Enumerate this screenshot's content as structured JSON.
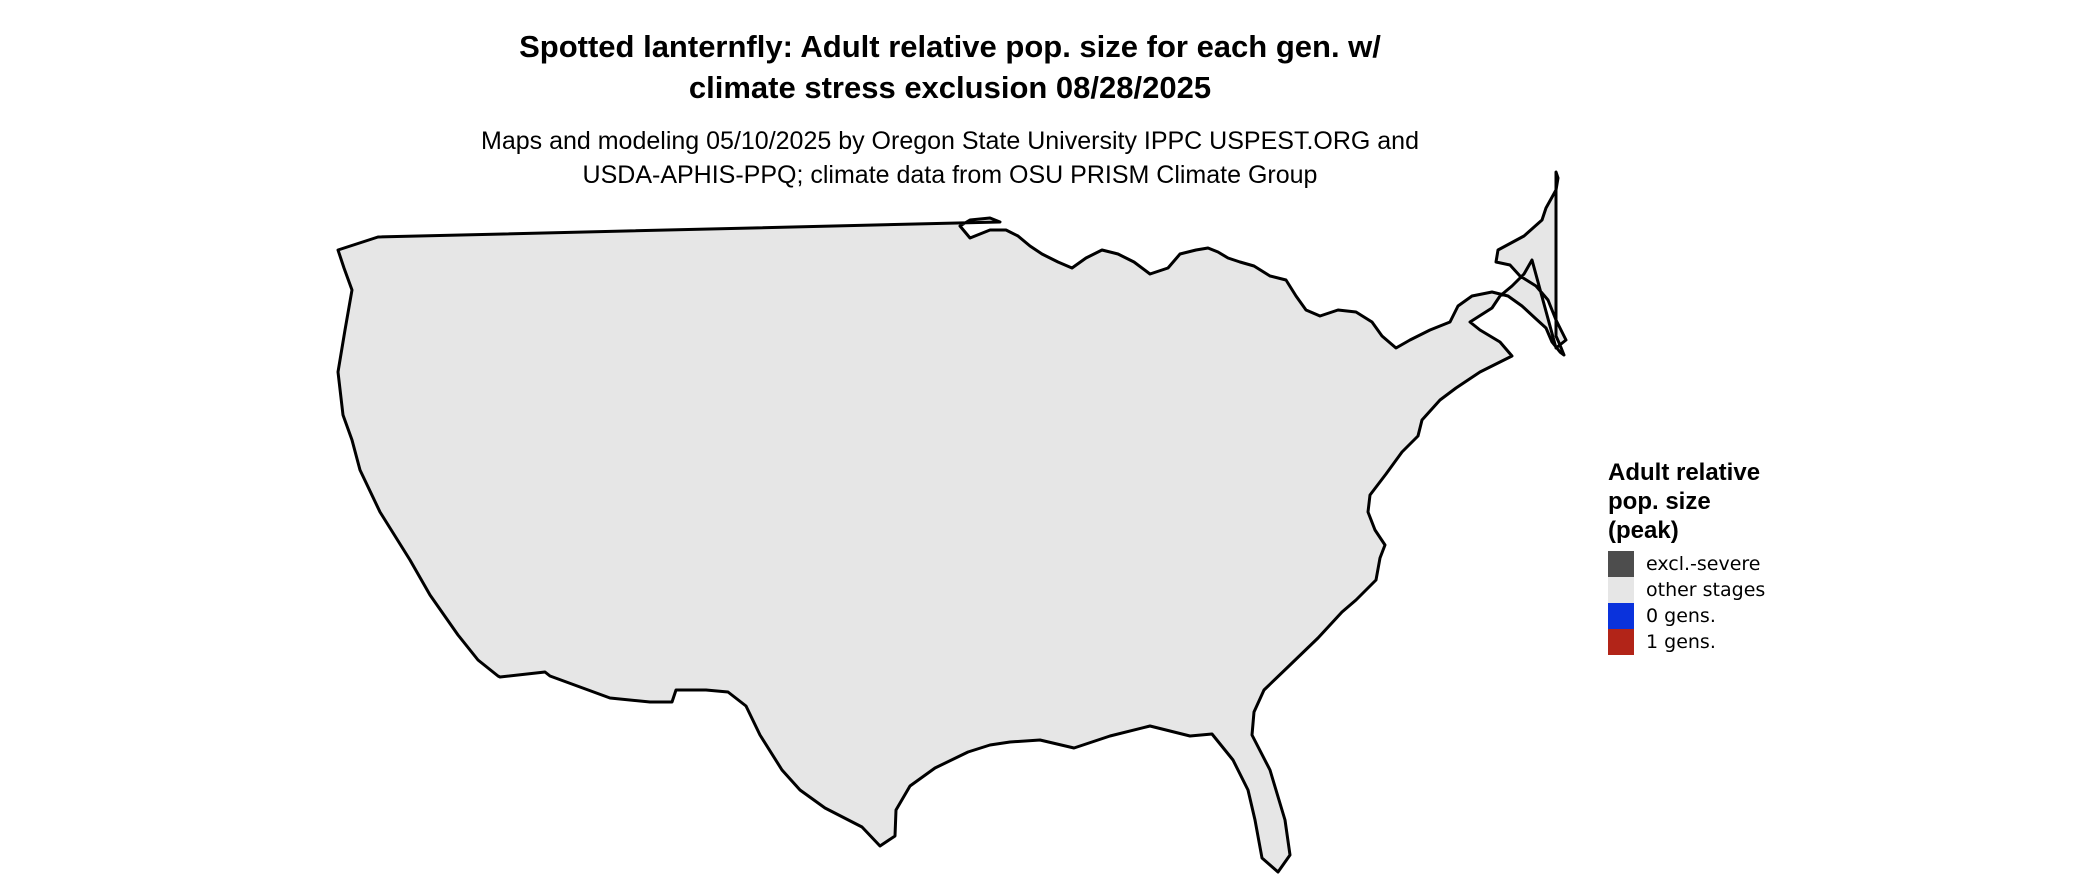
{
  "title_lines": [
    "Spotted lanternfly: Adult relative pop. size for each gen. w/",
    "climate stress exclusion 08/28/2025"
  ],
  "subtitle_lines": [
    "Maps and modeling 05/10/2025 by Oregon State University IPPC USPEST.ORG and",
    "USDA-APHIS-PPQ; climate data from OSU PRISM Climate Group"
  ],
  "legend": {
    "title_lines": [
      "Adult relative",
      "pop. size",
      "(peak)"
    ],
    "items": [
      {
        "label": "excl.-severe",
        "color": "#4d4d4d"
      },
      {
        "label": "other stages",
        "color": "#e6e6e6"
      },
      {
        "label": "0 gens.",
        "color": "#0a32dc"
      },
      {
        "label": "1 gens.",
        "color": "#b22418"
      }
    ]
  },
  "colors": {
    "land": "#e6e6e6",
    "border": "#000000",
    "zero_gens_dark": "#0a32dc",
    "zero_gens_mid": "#1a6fe6",
    "zero_gens_light": "#1fa6f0",
    "excl_severe": "#4d4d4d"
  }
}
